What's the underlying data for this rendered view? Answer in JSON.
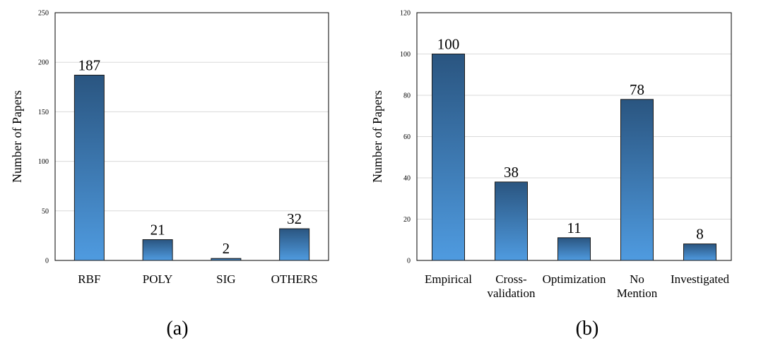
{
  "colors": {
    "bar_top": "#2a5580",
    "bar_bottom": "#4f9be0",
    "grid": "#d9d9d9"
  },
  "chart_data": [
    {
      "type": "bar",
      "caption": "(a)",
      "title": "",
      "xlabel": "",
      "ylabel": "Number of Papers",
      "ylim": [
        0,
        250
      ],
      "yticks": [
        0,
        50,
        100,
        150,
        200,
        250
      ],
      "grid": true,
      "categories": [
        [
          "RBF"
        ],
        [
          "POLY"
        ],
        [
          "SIG"
        ],
        [
          "OTHERS"
        ]
      ],
      "values": [
        187,
        21,
        2,
        32
      ]
    },
    {
      "type": "bar",
      "caption": "(b)",
      "title": "",
      "xlabel": "",
      "ylabel": "Number of Papers",
      "ylim": [
        0,
        120
      ],
      "yticks": [
        0,
        20,
        40,
        60,
        80,
        100,
        120
      ],
      "grid": true,
      "categories": [
        [
          "Empirical"
        ],
        [
          "Cross-",
          "validation"
        ],
        [
          "Optimization"
        ],
        [
          "No",
          "Mention"
        ],
        [
          "Investigated"
        ]
      ],
      "values": [
        100,
        38,
        11,
        78,
        8
      ]
    }
  ]
}
